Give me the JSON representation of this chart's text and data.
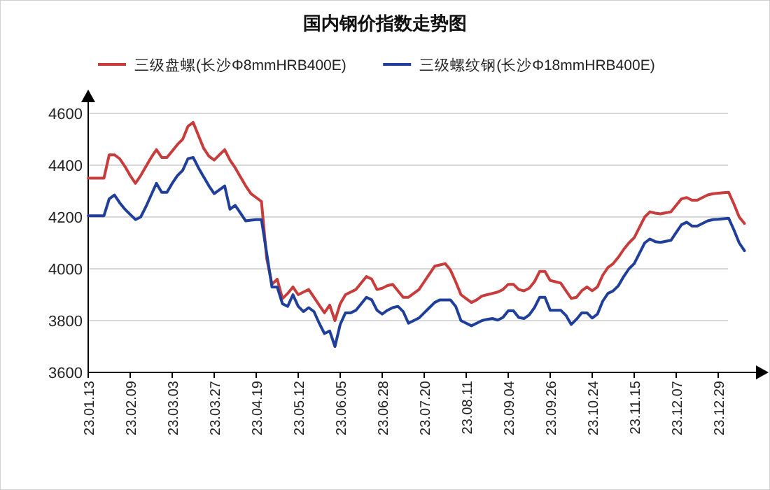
{
  "chart_data": {
    "type": "line",
    "title": "国内钢价指数走势图",
    "categories": [
      "23.01.13",
      null,
      null,
      null,
      null,
      null,
      null,
      null,
      "23.02.09",
      null,
      null,
      null,
      null,
      null,
      null,
      null,
      "23.03.03",
      null,
      null,
      null,
      null,
      null,
      null,
      null,
      "23.03.27",
      null,
      null,
      null,
      null,
      null,
      null,
      null,
      "23.04.19",
      null,
      null,
      null,
      null,
      null,
      null,
      null,
      "23.05.12",
      null,
      null,
      null,
      null,
      null,
      null,
      null,
      "23.06.05",
      null,
      null,
      null,
      null,
      null,
      null,
      null,
      "23.06.28",
      null,
      null,
      null,
      null,
      null,
      null,
      null,
      "23.07.20",
      null,
      null,
      null,
      null,
      null,
      null,
      null,
      "23.08.11",
      null,
      null,
      null,
      null,
      null,
      null,
      null,
      "23.09.04",
      null,
      null,
      null,
      null,
      null,
      null,
      null,
      "23.09.26",
      null,
      null,
      null,
      null,
      null,
      null,
      null,
      "23.10.24",
      null,
      null,
      null,
      null,
      null,
      null,
      null,
      "23.11.15",
      null,
      null,
      null,
      null,
      null,
      null,
      null,
      "23.12.07",
      null,
      null,
      null,
      null,
      null,
      null,
      null,
      "23.12.29",
      null,
      null,
      null,
      null,
      null
    ],
    "ylim": [
      3600,
      4600
    ],
    "yticks": [
      3600,
      3800,
      4000,
      4200,
      4400,
      4600
    ],
    "grid": "y",
    "legend": "top",
    "marker": "none",
    "line_style": "solid",
    "series": [
      {
        "name": "三级盘螺(长沙Φ8mmHRB400E)",
        "color": "#c83c3c",
        "values": [
          4350,
          4350,
          4350,
          4350,
          4440,
          4440,
          4425,
          4395,
          4360,
          4330,
          4360,
          4395,
          4430,
          4460,
          4430,
          4430,
          4455,
          4480,
          4500,
          4550,
          4565,
          4515,
          4465,
          4435,
          4420,
          4440,
          4460,
          4420,
          4390,
          4355,
          4320,
          4290,
          4275,
          4260,
          4040,
          3940,
          3960,
          3885,
          3905,
          3930,
          3900,
          3910,
          3920,
          3890,
          3860,
          3830,
          3860,
          3800,
          3865,
          3900,
          3910,
          3920,
          3945,
          3970,
          3960,
          3920,
          3925,
          3935,
          3940,
          3915,
          3890,
          3890,
          3905,
          3920,
          3950,
          3980,
          4010,
          4015,
          4020,
          3995,
          3950,
          3900,
          3885,
          3870,
          3880,
          3895,
          3900,
          3905,
          3910,
          3920,
          3940,
          3940,
          3920,
          3915,
          3925,
          3950,
          3990,
          3990,
          3955,
          3950,
          3945,
          3915,
          3886,
          3890,
          3915,
          3930,
          3915,
          3930,
          3975,
          4005,
          4020,
          4045,
          4075,
          4100,
          4120,
          4160,
          4200,
          4220,
          4215,
          4212,
          4216,
          4220,
          4245,
          4270,
          4275,
          4265,
          4265,
          4275,
          4285,
          4290,
          4292,
          4294,
          4295,
          4250,
          4200,
          4175
        ]
      },
      {
        "name": "三级螺纹钢(长沙Φ18mmHRB400E)",
        "color": "#1f3f9a",
        "values": [
          4205,
          4205,
          4205,
          4205,
          4270,
          4285,
          4255,
          4230,
          4210,
          4190,
          4200,
          4240,
          4285,
          4330,
          4295,
          4295,
          4330,
          4360,
          4380,
          4425,
          4430,
          4390,
          4355,
          4320,
          4290,
          4305,
          4320,
          4230,
          4245,
          4215,
          4185,
          4188,
          4190,
          4190,
          4060,
          3930,
          3930,
          3865,
          3855,
          3900,
          3855,
          3835,
          3850,
          3835,
          3790,
          3750,
          3760,
          3700,
          3785,
          3830,
          3830,
          3840,
          3865,
          3890,
          3880,
          3840,
          3825,
          3840,
          3850,
          3855,
          3835,
          3790,
          3800,
          3810,
          3830,
          3850,
          3870,
          3880,
          3880,
          3880,
          3855,
          3800,
          3790,
          3780,
          3790,
          3800,
          3805,
          3808,
          3802,
          3812,
          3838,
          3838,
          3812,
          3808,
          3822,
          3850,
          3890,
          3890,
          3840,
          3840,
          3840,
          3820,
          3785,
          3805,
          3830,
          3830,
          3810,
          3825,
          3875,
          3905,
          3915,
          3935,
          3970,
          4000,
          4020,
          4060,
          4100,
          4115,
          4105,
          4102,
          4106,
          4110,
          4140,
          4170,
          4180,
          4165,
          4165,
          4175,
          4185,
          4190,
          4191,
          4193,
          4195,
          4150,
          4100,
          4070
        ]
      }
    ]
  }
}
